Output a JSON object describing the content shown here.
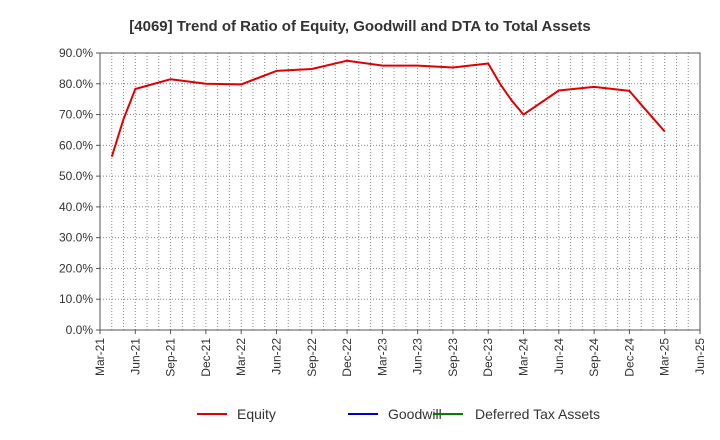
{
  "chart_data": {
    "type": "line",
    "title": "[4069]  Trend of Ratio of Equity, Goodwill and DTA to Total Assets",
    "xlabel": "",
    "ylabel": "",
    "x_ticks": [
      "Mar-21",
      "Jun-21",
      "Sep-21",
      "Dec-21",
      "Mar-22",
      "Jun-22",
      "Sep-22",
      "Dec-22",
      "Mar-23",
      "Jun-23",
      "Sep-23",
      "Dec-23",
      "Mar-24",
      "Jun-24",
      "Sep-24",
      "Dec-24",
      "Mar-25",
      "Jun-25"
    ],
    "y_ticks": [
      "0.0%",
      "10.0%",
      "20.0%",
      "30.0%",
      "40.0%",
      "50.0%",
      "60.0%",
      "70.0%",
      "80.0%",
      "90.0%"
    ],
    "ylim": [
      0,
      90
    ],
    "grid": true,
    "legend_position": "bottom",
    "series": [
      {
        "name": "Equity",
        "color": "#e00000",
        "points": [
          {
            "x": "Apr-21",
            "y": 56.3
          },
          {
            "x": "May-21",
            "y": 68.5
          },
          {
            "x": "Jun-21",
            "y": 78.3
          },
          {
            "x": "Sep-21",
            "y": 81.5
          },
          {
            "x": "Dec-21",
            "y": 80.0
          },
          {
            "x": "Mar-22",
            "y": 79.8
          },
          {
            "x": "Jun-22",
            "y": 84.2
          },
          {
            "x": "Sep-22",
            "y": 84.8
          },
          {
            "x": "Dec-22",
            "y": 87.5
          },
          {
            "x": "Mar-23",
            "y": 85.9
          },
          {
            "x": "Jun-23",
            "y": 85.9
          },
          {
            "x": "Sep-23",
            "y": 85.3
          },
          {
            "x": "Dec-23",
            "y": 86.6
          },
          {
            "x": "Jan-24",
            "y": 80.0
          },
          {
            "x": "Feb-24",
            "y": 74.5
          },
          {
            "x": "Mar-24",
            "y": 70.0
          },
          {
            "x": "Jun-24",
            "y": 77.8
          },
          {
            "x": "Sep-24",
            "y": 79.0
          },
          {
            "x": "Dec-24",
            "y": 77.7
          },
          {
            "x": "Jan-25",
            "y": 73.2
          },
          {
            "x": "Mar-25",
            "y": 64.5
          }
        ]
      },
      {
        "name": "Goodwill",
        "color": "#0000cc",
        "points": []
      },
      {
        "name": "Deferred Tax Assets",
        "color": "#008000",
        "points": []
      }
    ]
  }
}
